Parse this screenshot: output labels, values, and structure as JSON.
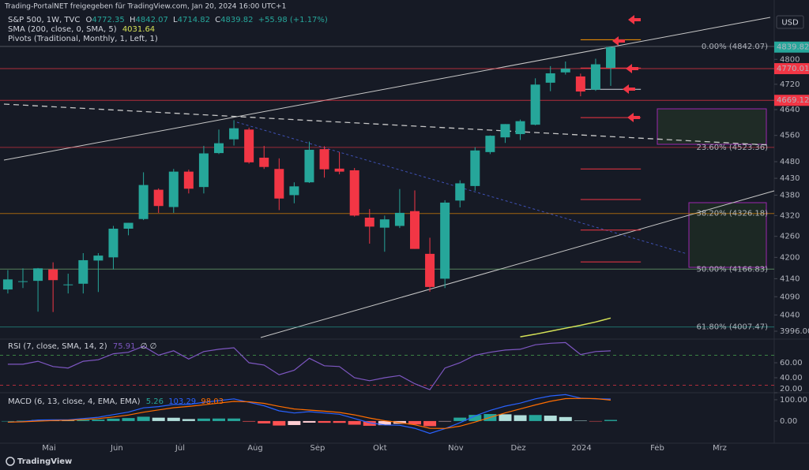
{
  "chart_data": {
    "type": "candlestick",
    "attribution": "Trading-PortalNET freigegeben für TradingView.com, Jan 20, 2024 16:00 UTC+1",
    "symbol": "S&P 500, 1W, TVC",
    "ohlc_labels": [
      "O",
      "H",
      "L",
      "C"
    ],
    "change": "+55.98 (+1.17%)",
    "sma_title": "SMA (200, close, 0, SMA, 5)",
    "pivots_title": "Pivots (Traditional, Monthly, 1, Left, 1)",
    "currency": "USD",
    "brand": "TradingView",
    "open": [
      4110,
      4132,
      4134,
      4166,
      4124,
      4126,
      4191,
      4200,
      4282,
      4310,
      4396,
      4345,
      4450,
      4404,
      4506,
      4548,
      4578,
      4492,
      4458,
      4380,
      4418,
      4518,
      4459,
      4454,
      4314,
      4285,
      4290,
      4333,
      4210,
      4140,
      4364,
      4407,
      4509,
      4554,
      4564,
      4593,
      4725,
      4758,
      4745,
      4703,
      4772.35
    ],
    "high": [
      4164,
      4169,
      4170,
      4186,
      4154,
      4212,
      4212,
      4290,
      4299,
      4448,
      4400,
      4458,
      4456,
      4528,
      4578,
      4607,
      4584,
      4528,
      4490,
      4418,
      4541,
      4527,
      4509,
      4461,
      4339,
      4320,
      4398,
      4394,
      4256,
      4365,
      4424,
      4524,
      4560,
      4595,
      4609,
      4739,
      4778,
      4793,
      4754,
      4802,
      4842.07
    ],
    "low": [
      4099,
      4114,
      4049,
      4048,
      4099,
      4099,
      4103,
      4166,
      4263,
      4307,
      4328,
      4328,
      4385,
      4385,
      4503,
      4529,
      4474,
      4458,
      4336,
      4356,
      4416,
      4432,
      4442,
      4317,
      4239,
      4216,
      4284,
      4224,
      4104,
      4114,
      4344,
      4393,
      4503,
      4537,
      4546,
      4591,
      4698,
      4751,
      4682,
      4699,
      4714.82
    ],
    "close": [
      4138,
      4133,
      4169,
      4136,
      4124,
      4192,
      4205,
      4282,
      4299,
      4410,
      4348,
      4450,
      4399,
      4505,
      4536,
      4582,
      4478,
      4464,
      4370,
      4406,
      4516,
      4457,
      4450,
      4320,
      4288,
      4309,
      4328,
      4224,
      4117,
      4358,
      4415,
      4514,
      4559,
      4595,
      4604,
      4719,
      4755,
      4770,
      4697,
      4784,
      4839.82
    ],
    "up_color": "#26a69a",
    "down_color": "#f23645",
    "sma": [
      null,
      null,
      null,
      null,
      null,
      null,
      null,
      null,
      null,
      null,
      null,
      null,
      null,
      null,
      null,
      null,
      null,
      null,
      null,
      null,
      null,
      null,
      null,
      null,
      null,
      null,
      null,
      null,
      null,
      null,
      null,
      null,
      null,
      null,
      3981,
      3988,
      3996,
      4004,
      4012,
      4021,
      4031.64
    ],
    "sma_color": "#d4e157",
    "log_scale": true,
    "ylim": [
      3979,
      4996
    ],
    "yticks": [
      4800,
      4720,
      4640,
      4560,
      4480,
      4430,
      4380,
      4320,
      4260,
      4200,
      4140,
      4090,
      4040,
      {
        "value": 3996,
        "label": "3996.00"
      }
    ],
    "xlim": [
      -0.52,
      50.85
    ],
    "xticks": [
      {
        "value": 2.73,
        "label": "Mai"
      },
      {
        "value": 7.23,
        "label": "Jun"
      },
      {
        "value": 11.43,
        "label": "Jul"
      },
      {
        "value": 16.41,
        "label": "Aug"
      },
      {
        "value": 20.55,
        "label": "Sep"
      },
      {
        "value": 24.69,
        "label": "Okt"
      },
      {
        "value": 29.72,
        "label": "Nov"
      },
      {
        "value": 33.87,
        "label": "Dez"
      },
      {
        "value": 38.06,
        "label": "2024"
      },
      {
        "value": 43.09,
        "label": "Feb"
      },
      {
        "value": 47.23,
        "label": "Mrz"
      }
    ],
    "price_lines": [
      {
        "value": 4770.01,
        "color": "#f23645"
      },
      {
        "value": 4669.12,
        "color": "#f23645"
      }
    ],
    "fib_levels": [
      {
        "value": 4842.07,
        "label": "0.00% (4842.07)",
        "color": "#787b86"
      },
      {
        "value": 4523.36,
        "label": "23.60% (4523.36)",
        "color": "#f23645"
      },
      {
        "value": 4326.18,
        "label": "38.20% (4326.18)",
        "color": "#ff9800"
      },
      {
        "value": 4166.83,
        "label": "50.00% (4166.83)",
        "color": "#81c784"
      },
      {
        "value": 4007.47,
        "label": "61.80% (4007.47)",
        "color": "#26a69a"
      }
    ],
    "pivot_levels": [
      {
        "value": 4864,
        "color": "#ff9800"
      },
      {
        "value": 4772,
        "color": "#f23645"
      },
      {
        "value": 4704,
        "color": "#d1d4dc"
      },
      {
        "value": 4615,
        "color": "#f23645"
      },
      {
        "value": 4458,
        "color": "#f23645"
      },
      {
        "value": 4367,
        "color": "#f23645"
      },
      {
        "value": 4278,
        "color": "#f23645"
      },
      {
        "value": 4187,
        "color": "#f23645"
      }
    ],
    "pivot_span": [
      38,
      42
    ],
    "rsi": {
      "title": "RSI (7, close, SMA, 14, 2)",
      "na": "∅ ∅",
      "values": [
        58,
        58,
        62,
        55,
        53,
        62,
        64,
        72,
        74,
        82,
        70,
        76,
        65,
        75,
        78,
        80,
        60,
        57,
        44,
        50,
        66,
        56,
        55,
        40,
        36,
        40,
        43,
        32,
        24,
        53,
        60,
        70,
        74,
        77,
        78,
        84,
        86,
        87,
        71,
        75,
        75.91
      ],
      "color": "#7e57c2",
      "ylim": [
        20,
        89.5
      ],
      "yticks": [
        {
          "value": 60,
          "label": "60.00"
        },
        {
          "value": 40,
          "label": "40.00"
        },
        {
          "value": 20,
          "label": "20.00"
        }
      ],
      "levels": [
        70,
        30
      ]
    },
    "macd": {
      "title": "MACD (6, 13, close, 4, EMA, EMA)",
      "histogram": [
        0,
        1.8,
        5.3,
        3.8,
        2.3,
        5,
        6.6,
        11.2,
        13.9,
        20.3,
        15.8,
        15.5,
        9.3,
        11.6,
        11.8,
        11.9,
        -2.5,
        -11.1,
        -21.1,
        -18.7,
        -7.6,
        -8.2,
        -8.5,
        -17.1,
        -22.3,
        -19.4,
        -12.8,
        -16.1,
        -24.1,
        -1.3,
        16,
        28.8,
        32.9,
        31.7,
        27.4,
        28.4,
        25.4,
        18.8,
        1.7,
        -1.4,
        5.26
      ],
      "macd": [
        -5,
        -2,
        5,
        6,
        6,
        12,
        18,
        30,
        42,
        62,
        68,
        78,
        78,
        88,
        96,
        104,
        88,
        72,
        48,
        38,
        44,
        38,
        32,
        12,
        -8,
        -18,
        -20,
        -34,
        -58,
        -36,
        -8,
        24,
        50,
        70,
        84,
        104,
        118,
        124,
        108,
        104,
        103.29
      ],
      "signal": [
        -5,
        -3.8,
        -0.3,
        2.2,
        3.7,
        7,
        11.4,
        18.8,
        28.1,
        41.7,
        52.2,
        62.5,
        68.7,
        76.4,
        84.2,
        92.1,
        90.5,
        83.1,
        69.1,
        56.7,
        51.6,
        46.2,
        40.5,
        29.1,
        14.3,
        1.4,
        -7.2,
        -17.9,
        -33.9,
        -34.7,
        -24,
        -4.8,
        17.1,
        38.3,
        56.6,
        75.6,
        92.6,
        105.2,
        106.3,
        105.4,
        98.03
      ],
      "macd_color": "#2962ff",
      "signal_color": "#ff6d00",
      "ylim": [
        -104,
        133
      ],
      "yticks": [
        {
          "value": 100,
          "label": "100.00"
        },
        {
          "value": 0,
          "label": "0.00"
        }
      ]
    }
  }
}
